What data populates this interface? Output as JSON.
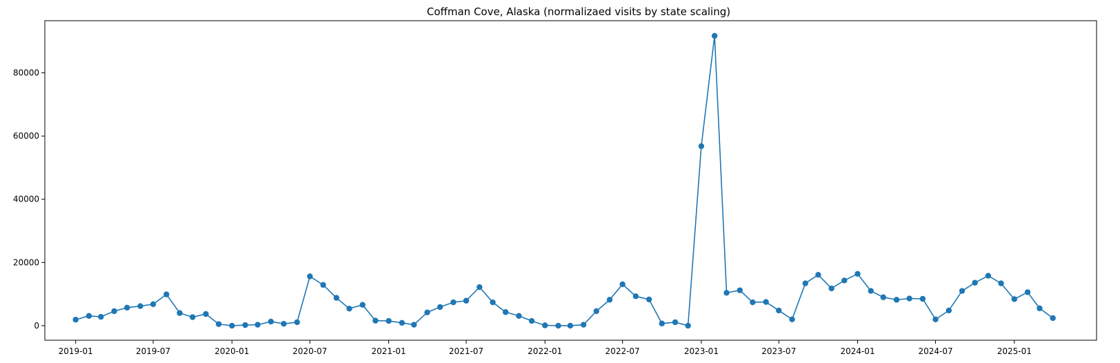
{
  "chart_data": {
    "type": "line",
    "title": "Coffman Cove, Alaska (normalizaed visits by state scaling)",
    "xlabel": "",
    "ylabel": "",
    "x_tick_labels": [
      "2019-01",
      "2019-07",
      "2020-01",
      "2020-07",
      "2021-01",
      "2021-07",
      "2022-01",
      "2022-07",
      "2023-01",
      "2023-07",
      "2024-01",
      "2024-07",
      "2025-01"
    ],
    "y_ticks": [
      0,
      20000,
      40000,
      60000,
      80000
    ],
    "ylim": [
      -4600,
      96500
    ],
    "xlim": [
      "2018-10-21",
      "2025-07-12"
    ],
    "grid": false,
    "legend": "none",
    "marker": "circle",
    "color": "#1f77b4",
    "series": [
      {
        "x": [
          "2019-01",
          "2019-02",
          "2019-03",
          "2019-04",
          "2019-05",
          "2019-06",
          "2019-07",
          "2019-08",
          "2019-09",
          "2019-10",
          "2019-11",
          "2019-12",
          "2020-01",
          "2020-02",
          "2020-03",
          "2020-04",
          "2020-05",
          "2020-06",
          "2020-07",
          "2020-08",
          "2020-09",
          "2020-10",
          "2020-11",
          "2020-12",
          "2021-01",
          "2021-02",
          "2021-03",
          "2021-04",
          "2021-05",
          "2021-06",
          "2021-07",
          "2021-08",
          "2021-09",
          "2021-10",
          "2021-11",
          "2021-12",
          "2022-01",
          "2022-02",
          "2022-03",
          "2022-04",
          "2022-05",
          "2022-06",
          "2022-07",
          "2022-08",
          "2022-09",
          "2022-10",
          "2022-11",
          "2022-12",
          "2023-01",
          "2023-02",
          "2023-03",
          "2023-04",
          "2023-05",
          "2023-06",
          "2023-07",
          "2023-08",
          "2023-09",
          "2023-10",
          "2023-11",
          "2023-12",
          "2024-01",
          "2024-02",
          "2024-03",
          "2024-04",
          "2024-05",
          "2024-06",
          "2024-07",
          "2024-08",
          "2024-09",
          "2024-10",
          "2024-11",
          "2024-12",
          "2025-01",
          "2025-02",
          "2025-03",
          "2025-04"
        ],
        "values": [
          1900,
          3100,
          2800,
          4600,
          5700,
          6200,
          6800,
          9900,
          4000,
          2700,
          3700,
          500,
          0,
          200,
          300,
          1300,
          600,
          1100,
          15600,
          12900,
          8800,
          5400,
          6600,
          1600,
          1500,
          900,
          300,
          4200,
          5900,
          7400,
          7900,
          12200,
          7400,
          4300,
          3100,
          1500,
          100,
          0,
          0,
          300,
          4600,
          8200,
          13100,
          9300,
          8300,
          700,
          1100,
          0,
          56800,
          91700,
          10400,
          11200,
          7400,
          7500,
          4800,
          2000,
          13400,
          16100,
          11800,
          14300,
          16400,
          11000,
          9000,
          8200,
          8600,
          8500,
          2000,
          4800,
          11000,
          13600,
          15800,
          13400,
          8400,
          10600,
          5500,
          2400
        ]
      }
    ]
  }
}
